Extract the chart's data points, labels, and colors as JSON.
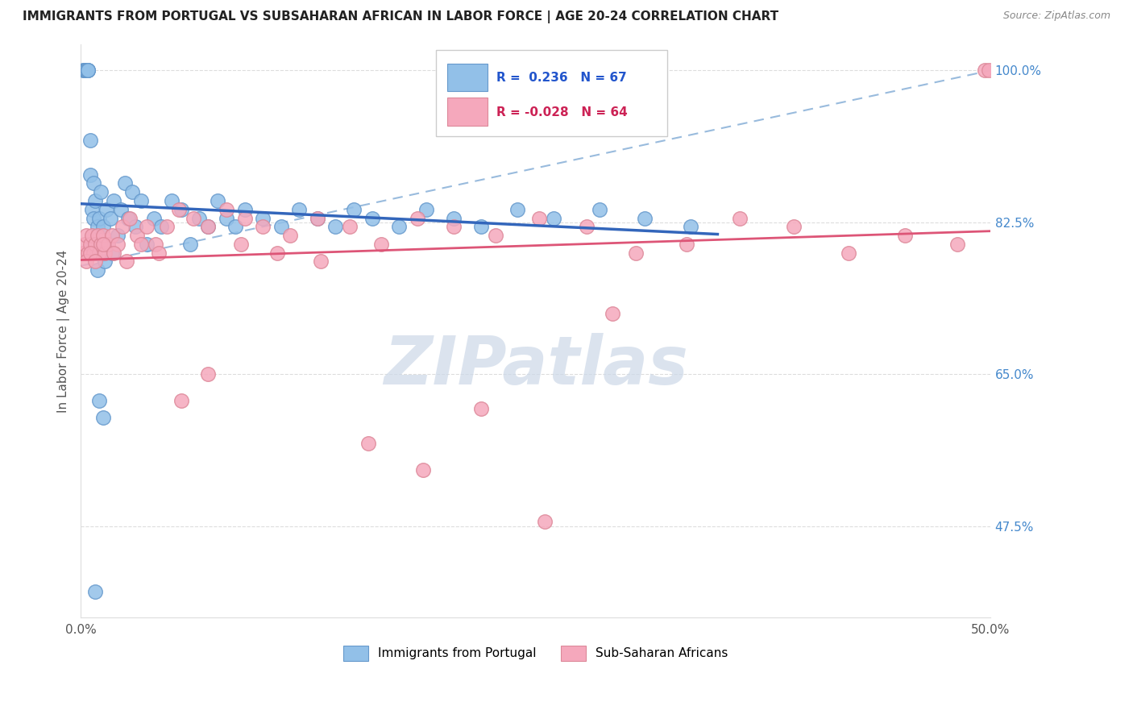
{
  "title": "IMMIGRANTS FROM PORTUGAL VS SUBSAHARAN AFRICAN IN LABOR FORCE | AGE 20-24 CORRELATION CHART",
  "source": "Source: ZipAtlas.com",
  "ylabel": "In Labor Force | Age 20-24",
  "xlim": [
    0.0,
    0.5
  ],
  "ylim": [
    0.37,
    1.03
  ],
  "xtick_positions": [
    0.0,
    0.1,
    0.2,
    0.3,
    0.4,
    0.5
  ],
  "xticklabels": [
    "0.0%",
    "",
    "",
    "",
    "",
    "50.0%"
  ],
  "ytick_positions": [
    0.475,
    0.65,
    0.825,
    1.0
  ],
  "ytick_labels": [
    "47.5%",
    "65.0%",
    "82.5%",
    "100.0%"
  ],
  "legend_blue_r": "0.236",
  "legend_blue_n": "67",
  "legend_pink_r": "-0.028",
  "legend_pink_n": "64",
  "blue_color": "#92c0e8",
  "blue_edge_color": "#6699cc",
  "pink_color": "#f5a8bc",
  "pink_edge_color": "#dd8899",
  "blue_line_color": "#3366bb",
  "pink_line_color": "#dd5577",
  "dashed_line_color": "#99bbdd",
  "watermark_color": "#ccd8e8",
  "title_color": "#222222",
  "source_color": "#888888",
  "ylabel_color": "#555555",
  "right_tick_color": "#4488cc",
  "grid_color": "#dddddd",
  "legend_edge_color": "#cccccc",
  "bottom_legend_blue": "Immigrants from Portugal",
  "bottom_legend_pink": "Sub-Saharan Africans",
  "blue_x": [
    0.001,
    0.002,
    0.002,
    0.003,
    0.003,
    0.003,
    0.004,
    0.004,
    0.004,
    0.005,
    0.005,
    0.006,
    0.006,
    0.007,
    0.007,
    0.008,
    0.008,
    0.009,
    0.009,
    0.01,
    0.01,
    0.011,
    0.012,
    0.013,
    0.014,
    0.015,
    0.016,
    0.017,
    0.018,
    0.02,
    0.022,
    0.024,
    0.026,
    0.028,
    0.03,
    0.033,
    0.036,
    0.04,
    0.044,
    0.05,
    0.055,
    0.06,
    0.065,
    0.07,
    0.075,
    0.08,
    0.085,
    0.09,
    0.1,
    0.11,
    0.12,
    0.13,
    0.14,
    0.15,
    0.16,
    0.175,
    0.19,
    0.205,
    0.22,
    0.24,
    0.26,
    0.285,
    0.31,
    0.335,
    0.01,
    0.012,
    0.008
  ],
  "blue_y": [
    1.0,
    1.0,
    1.0,
    1.0,
    1.0,
    1.0,
    1.0,
    1.0,
    1.0,
    0.92,
    0.88,
    0.84,
    0.8,
    0.87,
    0.83,
    0.85,
    0.79,
    0.82,
    0.77,
    0.83,
    0.8,
    0.86,
    0.82,
    0.78,
    0.84,
    0.8,
    0.83,
    0.79,
    0.85,
    0.81,
    0.84,
    0.87,
    0.83,
    0.86,
    0.82,
    0.85,
    0.8,
    0.83,
    0.82,
    0.85,
    0.84,
    0.8,
    0.83,
    0.82,
    0.85,
    0.83,
    0.82,
    0.84,
    0.83,
    0.82,
    0.84,
    0.83,
    0.82,
    0.84,
    0.83,
    0.82,
    0.84,
    0.83,
    0.82,
    0.84,
    0.83,
    0.84,
    0.83,
    0.82,
    0.62,
    0.6,
    0.4
  ],
  "pink_x": [
    0.001,
    0.002,
    0.003,
    0.004,
    0.005,
    0.006,
    0.007,
    0.008,
    0.009,
    0.01,
    0.011,
    0.012,
    0.013,
    0.015,
    0.017,
    0.02,
    0.023,
    0.027,
    0.031,
    0.036,
    0.041,
    0.047,
    0.054,
    0.062,
    0.07,
    0.08,
    0.09,
    0.1,
    0.115,
    0.13,
    0.148,
    0.165,
    0.185,
    0.205,
    0.228,
    0.252,
    0.278,
    0.305,
    0.333,
    0.362,
    0.392,
    0.422,
    0.453,
    0.482,
    0.497,
    0.499,
    0.003,
    0.005,
    0.008,
    0.012,
    0.018,
    0.025,
    0.033,
    0.043,
    0.055,
    0.07,
    0.088,
    0.108,
    0.132,
    0.158,
    0.188,
    0.22,
    0.255,
    0.292
  ],
  "pink_y": [
    0.79,
    0.8,
    0.81,
    0.79,
    0.8,
    0.81,
    0.79,
    0.8,
    0.81,
    0.79,
    0.8,
    0.81,
    0.79,
    0.8,
    0.81,
    0.8,
    0.82,
    0.83,
    0.81,
    0.82,
    0.8,
    0.82,
    0.84,
    0.83,
    0.82,
    0.84,
    0.83,
    0.82,
    0.81,
    0.83,
    0.82,
    0.8,
    0.83,
    0.82,
    0.81,
    0.83,
    0.82,
    0.79,
    0.8,
    0.83,
    0.82,
    0.79,
    0.81,
    0.8,
    1.0,
    1.0,
    0.78,
    0.79,
    0.78,
    0.8,
    0.79,
    0.78,
    0.8,
    0.79,
    0.62,
    0.65,
    0.8,
    0.79,
    0.78,
    0.57,
    0.54,
    0.61,
    0.48,
    0.72
  ]
}
